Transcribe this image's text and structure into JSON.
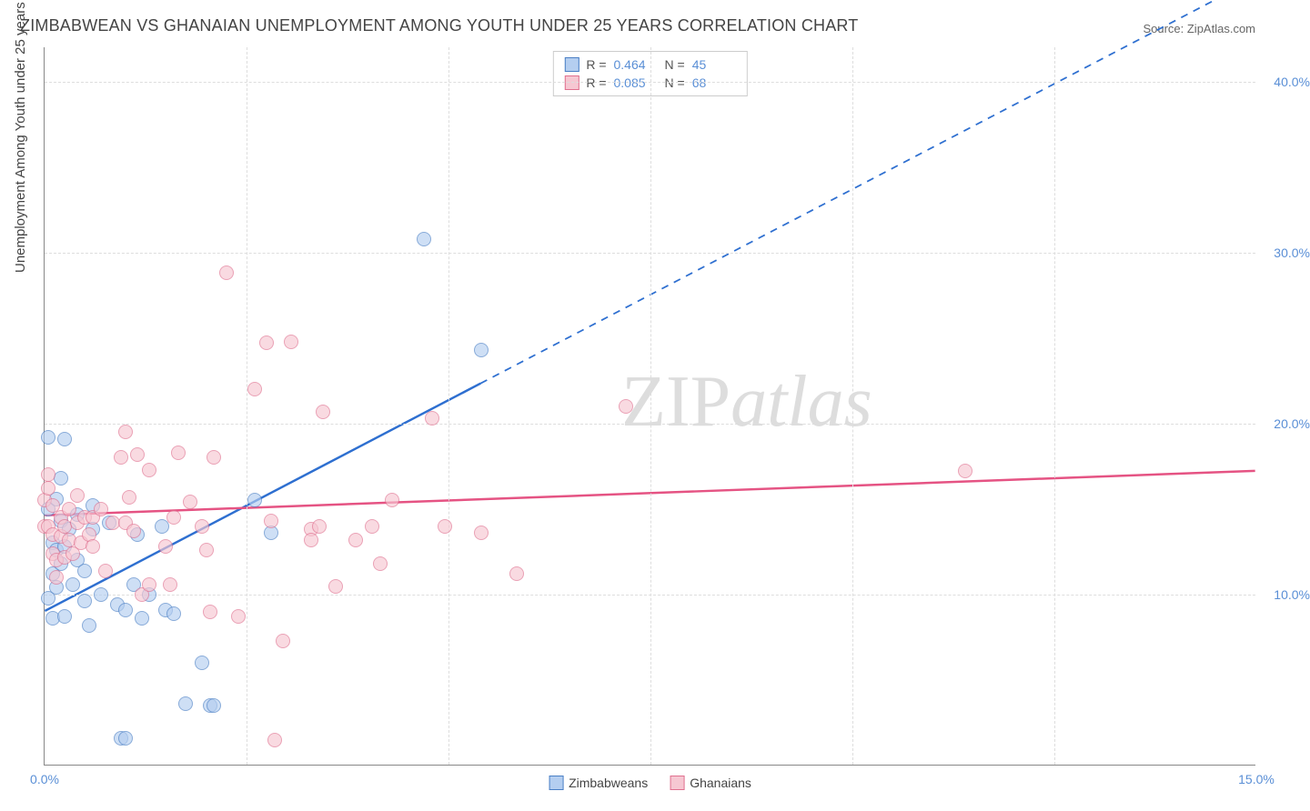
{
  "title": "ZIMBABWEAN VS GHANAIAN UNEMPLOYMENT AMONG YOUTH UNDER 25 YEARS CORRELATION CHART",
  "source": "Source: ZipAtlas.com",
  "yaxis_title": "Unemployment Among Youth under 25 years",
  "watermark_a": "ZIP",
  "watermark_b": "atlas",
  "chart": {
    "type": "scatter",
    "background_color": "#ffffff",
    "grid_color": "#dddddd",
    "axis_color": "#888888",
    "label_color": "#5a8fd6",
    "label_fontsize": 14,
    "title_color": "#444444",
    "title_fontsize": 18,
    "xlim": [
      0,
      15
    ],
    "ylim": [
      0,
      42
    ],
    "xtick_labels": [
      "0.0%",
      "15.0%"
    ],
    "xtick_positions": [
      0,
      15
    ],
    "xgrid_positions": [
      2.5,
      5.0,
      7.5,
      10.0,
      12.5
    ],
    "ytick_labels": [
      "10.0%",
      "20.0%",
      "30.0%",
      "40.0%"
    ],
    "ytick_positions": [
      10,
      20,
      30,
      40
    ],
    "marker_radius": 8,
    "marker_opacity": 0.65,
    "marker_border_width": 1,
    "series": [
      {
        "name": "Zimbabweans",
        "fill_color": "#b4cef0",
        "stroke_color": "#4a7fc5",
        "line_color": "#2e6fd0",
        "line_width": 2.5,
        "trend": {
          "x1": 0,
          "y1": 9.0,
          "x2": 15,
          "y2": 46.0,
          "solid_until_x": 5.4
        },
        "R": "0.464",
        "N": "45",
        "points": [
          [
            0.05,
            9.8
          ],
          [
            0.05,
            15.0
          ],
          [
            0.05,
            19.2
          ],
          [
            0.1,
            13.0
          ],
          [
            0.1,
            11.2
          ],
          [
            0.1,
            8.6
          ],
          [
            0.15,
            15.6
          ],
          [
            0.15,
            12.6
          ],
          [
            0.15,
            10.4
          ],
          [
            0.2,
            14.3
          ],
          [
            0.2,
            16.8
          ],
          [
            0.2,
            11.8
          ],
          [
            0.25,
            19.1
          ],
          [
            0.25,
            8.7
          ],
          [
            0.25,
            12.8
          ],
          [
            0.3,
            13.8
          ],
          [
            0.35,
            10.6
          ],
          [
            0.4,
            14.7
          ],
          [
            0.4,
            12.0
          ],
          [
            0.5,
            9.6
          ],
          [
            0.5,
            11.4
          ],
          [
            0.55,
            8.2
          ],
          [
            0.6,
            13.8
          ],
          [
            0.6,
            15.2
          ],
          [
            0.7,
            10.0
          ],
          [
            0.8,
            14.2
          ],
          [
            0.9,
            9.4
          ],
          [
            0.95,
            1.6
          ],
          [
            1.0,
            1.6
          ],
          [
            1.0,
            9.1
          ],
          [
            1.1,
            10.6
          ],
          [
            1.15,
            13.5
          ],
          [
            1.2,
            8.6
          ],
          [
            1.3,
            10.0
          ],
          [
            1.45,
            14.0
          ],
          [
            1.5,
            9.1
          ],
          [
            1.6,
            8.9
          ],
          [
            1.75,
            3.6
          ],
          [
            1.95,
            6.0
          ],
          [
            2.05,
            3.5
          ],
          [
            2.1,
            3.5
          ],
          [
            2.6,
            15.5
          ],
          [
            2.8,
            13.6
          ],
          [
            4.7,
            30.8
          ],
          [
            5.4,
            24.3
          ]
        ]
      },
      {
        "name": "Ghanaians",
        "fill_color": "#f6c7d2",
        "stroke_color": "#e0708f",
        "line_color": "#e55383",
        "line_width": 2.5,
        "trend": {
          "x1": 0,
          "y1": 14.6,
          "x2": 15,
          "y2": 17.2,
          "solid_until_x": 15
        },
        "R": "0.085",
        "N": "68",
        "points": [
          [
            0.0,
            14.0
          ],
          [
            0.0,
            15.5
          ],
          [
            0.05,
            17.0
          ],
          [
            0.05,
            14.0
          ],
          [
            0.05,
            16.2
          ],
          [
            0.1,
            12.4
          ],
          [
            0.1,
            13.5
          ],
          [
            0.1,
            15.2
          ],
          [
            0.15,
            12.0
          ],
          [
            0.15,
            11.0
          ],
          [
            0.2,
            13.4
          ],
          [
            0.2,
            14.5
          ],
          [
            0.25,
            14.0
          ],
          [
            0.25,
            12.2
          ],
          [
            0.3,
            15.0
          ],
          [
            0.3,
            13.2
          ],
          [
            0.35,
            12.4
          ],
          [
            0.4,
            15.8
          ],
          [
            0.4,
            14.2
          ],
          [
            0.45,
            13.0
          ],
          [
            0.5,
            14.5
          ],
          [
            0.55,
            13.5
          ],
          [
            0.6,
            14.5
          ],
          [
            0.6,
            12.8
          ],
          [
            0.7,
            15.0
          ],
          [
            0.75,
            11.4
          ],
          [
            0.85,
            14.2
          ],
          [
            0.95,
            18.0
          ],
          [
            1.0,
            19.5
          ],
          [
            1.0,
            14.2
          ],
          [
            1.05,
            15.7
          ],
          [
            1.1,
            13.7
          ],
          [
            1.15,
            18.2
          ],
          [
            1.2,
            10.0
          ],
          [
            1.3,
            17.3
          ],
          [
            1.3,
            10.6
          ],
          [
            1.5,
            12.8
          ],
          [
            1.55,
            10.6
          ],
          [
            1.6,
            14.5
          ],
          [
            1.65,
            18.3
          ],
          [
            1.8,
            15.4
          ],
          [
            1.95,
            14.0
          ],
          [
            2.0,
            12.6
          ],
          [
            2.05,
            9.0
          ],
          [
            2.1,
            18.0
          ],
          [
            2.25,
            28.8
          ],
          [
            2.4,
            8.7
          ],
          [
            2.6,
            22.0
          ],
          [
            2.75,
            24.7
          ],
          [
            2.8,
            14.3
          ],
          [
            2.85,
            1.5
          ],
          [
            2.95,
            7.3
          ],
          [
            3.05,
            24.8
          ],
          [
            3.3,
            13.8
          ],
          [
            3.3,
            13.2
          ],
          [
            3.4,
            14.0
          ],
          [
            3.45,
            20.7
          ],
          [
            3.6,
            10.5
          ],
          [
            3.85,
            13.2
          ],
          [
            4.05,
            14.0
          ],
          [
            4.15,
            11.8
          ],
          [
            4.3,
            15.5
          ],
          [
            4.8,
            20.3
          ],
          [
            4.95,
            14.0
          ],
          [
            5.4,
            13.6
          ],
          [
            5.85,
            11.2
          ],
          [
            7.2,
            21.0
          ],
          [
            11.4,
            17.2
          ]
        ]
      }
    ]
  },
  "legend": {
    "items": [
      {
        "label": "Zimbabweans",
        "fill": "#b4cef0",
        "stroke": "#4a7fc5"
      },
      {
        "label": "Ghanaians",
        "fill": "#f6c7d2",
        "stroke": "#e0708f"
      }
    ]
  },
  "stats_labels": {
    "R": "R =",
    "N": "N ="
  }
}
